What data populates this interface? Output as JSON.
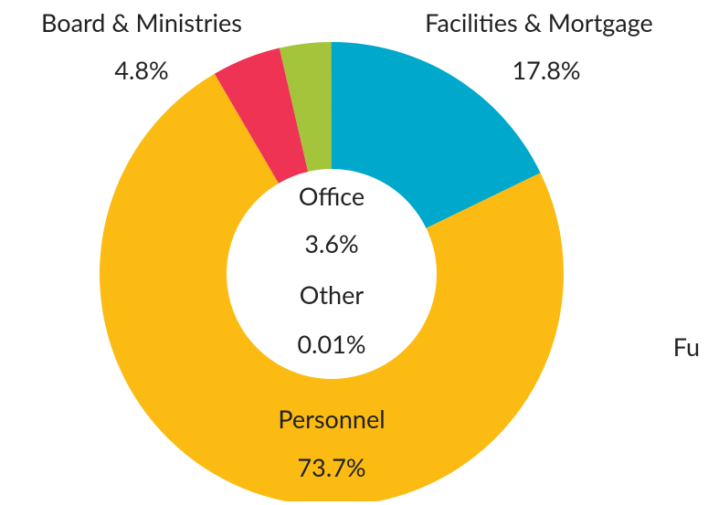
{
  "chart_data": {
    "type": "donut",
    "categories": [
      "Facilities & Mortgage",
      "Personnel",
      "Board & Ministries",
      "Office",
      "Other"
    ],
    "values": [
      17.8,
      73.7,
      4.8,
      3.6,
      0.01
    ],
    "value_labels": [
      "17.8%",
      "73.7%",
      "4.8%",
      "3.6%",
      "0.01%"
    ],
    "colors": [
      "#00a9cc",
      "#fbbb13",
      "#ee3355",
      "#a4c43c",
      "#333333"
    ],
    "annotations": [
      "Fu"
    ]
  }
}
